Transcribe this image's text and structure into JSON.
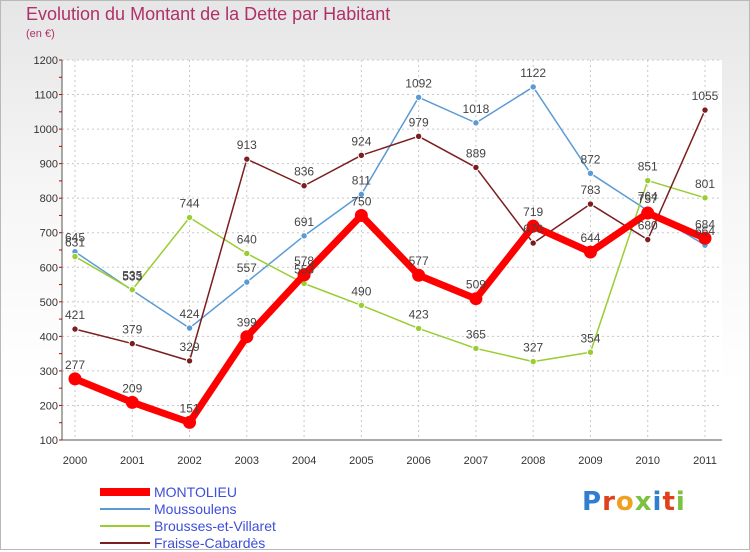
{
  "title": "Evolution du Montant de la Dette par Habitant",
  "subtitle": "(en €)",
  "logo": {
    "text": "Proxiti",
    "letter_colors": [
      "#2f7fd0",
      "#e0401a",
      "#f0a020",
      "#7bc242",
      "#2f7fd0",
      "#e0401a",
      "#7bc242"
    ]
  },
  "chart_data": {
    "type": "line",
    "title": "Evolution du Montant de la Dette par Habitant",
    "ylabel": "(en €)",
    "xlabel": "",
    "categories": [
      "2000",
      "2001",
      "2002",
      "2003",
      "2004",
      "2005",
      "2006",
      "2007",
      "2008",
      "2009",
      "2010",
      "2011"
    ],
    "y_ticks": [
      "100",
      "200",
      "300",
      "400",
      "500",
      "600",
      "700",
      "800",
      "900",
      "1000",
      "1100",
      "1200"
    ],
    "ylim": [
      100,
      1200
    ],
    "grid": true,
    "legend_position": "bottom-left",
    "series": [
      {
        "name": "MONTOLIEU",
        "color": "#ff0000",
        "emphasized": true,
        "values": [
          277,
          209,
          151,
          399,
          578,
          750,
          577,
          509,
          719,
          644,
          757,
          684
        ]
      },
      {
        "name": "Moussoulens",
        "color": "#5b9bd5",
        "emphasized": false,
        "values": [
          645,
          533,
          424,
          557,
          691,
          811,
          1092,
          1018,
          1122,
          872,
          764,
          664
        ]
      },
      {
        "name": "Brousses-et-Villaret",
        "color": "#9acd32",
        "emphasized": false,
        "values": [
          631,
          535,
          744,
          640,
          553,
          490,
          423,
          365,
          327,
          354,
          851,
          801
        ]
      },
      {
        "name": "Fraisse-Cabardès",
        "color": "#7b1e1e",
        "emphasized": false,
        "values": [
          421,
          379,
          329,
          913,
          836,
          924,
          979,
          889,
          670,
          783,
          680,
          1055
        ]
      }
    ]
  }
}
